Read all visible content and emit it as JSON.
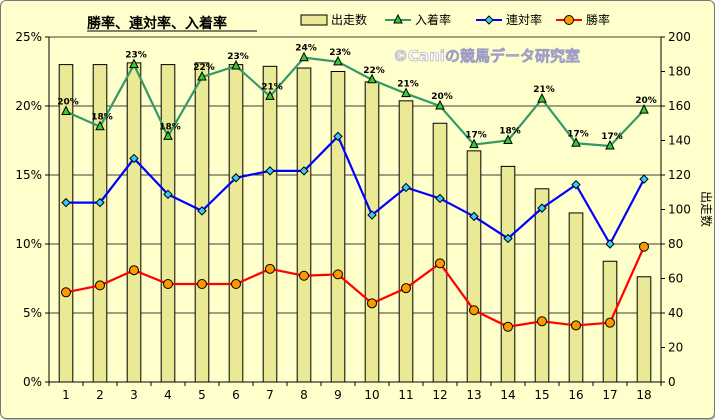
{
  "chart_data": {
    "type": "bar",
    "title": "勝率、連対率、入着率",
    "watermark": "©Caniの競馬データ研究室",
    "categories": [
      "1",
      "2",
      "3",
      "4",
      "5",
      "6",
      "7",
      "8",
      "9",
      "10",
      "11",
      "12",
      "13",
      "14",
      "15",
      "16",
      "17",
      "18"
    ],
    "series": [
      {
        "name": "出走数",
        "kind": "bar",
        "axis": "right",
        "color": "#eaea96",
        "values": [
          184,
          184,
          185,
          184,
          185,
          184,
          183,
          182,
          180,
          174,
          163,
          150,
          134,
          125,
          112,
          98,
          70,
          61
        ]
      },
      {
        "name": "入着率",
        "kind": "line",
        "axis": "left",
        "color": "#339966",
        "marker": "triangle",
        "values": [
          19.6,
          18.5,
          23.0,
          17.8,
          22.1,
          22.9,
          20.7,
          23.5,
          23.2,
          21.9,
          20.9,
          20.0,
          17.2,
          17.5,
          20.5,
          17.3,
          17.1,
          19.7
        ],
        "labels": [
          "20%",
          "18%",
          "23%",
          "18%",
          "22%",
          "23%",
          "21%",
          "24%",
          "23%",
          "22%",
          "21%",
          "20%",
          "17%",
          "18%",
          "21%",
          "17%",
          "17%",
          "20%"
        ]
      },
      {
        "name": "連対率",
        "kind": "line",
        "axis": "left",
        "color": "#0000ff",
        "marker": "diamond",
        "values": [
          13.0,
          13.0,
          16.2,
          13.6,
          12.4,
          14.8,
          15.3,
          15.3,
          17.8,
          12.1,
          14.1,
          13.3,
          12.0,
          10.4,
          12.6,
          14.3,
          10.0,
          14.7
        ]
      },
      {
        "name": "勝率",
        "kind": "line",
        "axis": "left",
        "color": "#ff0000",
        "marker": "circle",
        "marker_fill": "#ff9900",
        "values": [
          6.5,
          7.0,
          8.1,
          7.1,
          7.1,
          7.1,
          8.2,
          7.7,
          7.8,
          5.7,
          6.8,
          8.6,
          5.2,
          4.0,
          4.4,
          4.1,
          4.3,
          9.8
        ]
      }
    ],
    "y_left": {
      "min": 0,
      "max": 25,
      "step": 5,
      "tick_labels": [
        "0%",
        "5%",
        "10%",
        "15%",
        "20%",
        "25%"
      ]
    },
    "y_right": {
      "min": 0,
      "max": 200,
      "step": 20,
      "label": "出走数",
      "tick_labels": [
        "0",
        "20",
        "40",
        "60",
        "80",
        "100",
        "120",
        "140",
        "160",
        "180",
        "200"
      ]
    },
    "grid": true,
    "legend_position": "top"
  }
}
